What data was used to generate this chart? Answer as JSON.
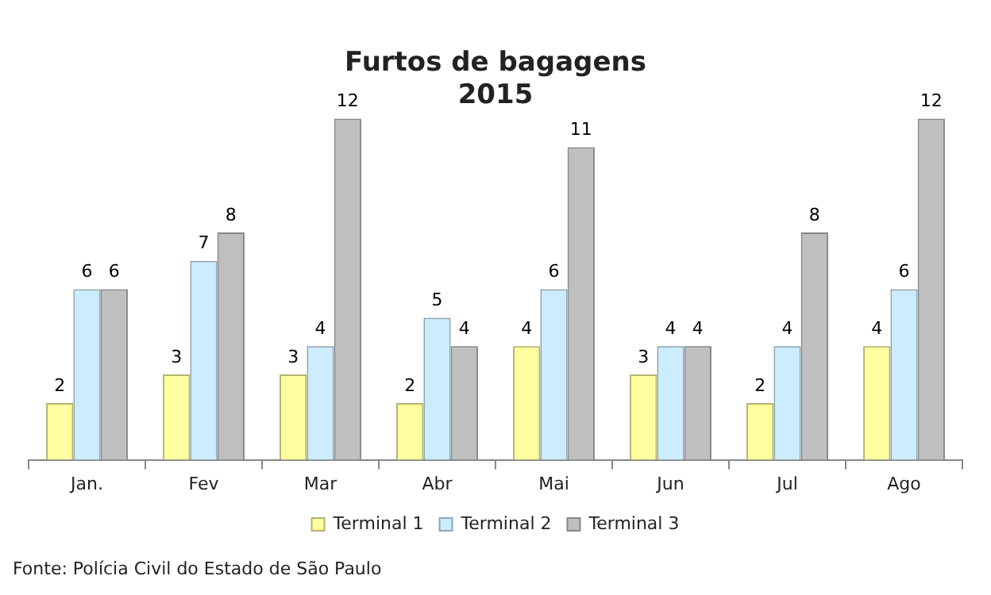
{
  "chart_data": {
    "type": "bar",
    "title": "Furtos de bagagens",
    "subtitle": "2015",
    "categories": [
      "Jan.",
      "Fev",
      "Mar",
      "Abr",
      "Mai",
      "Jun",
      "Jul",
      "Ago"
    ],
    "series": [
      {
        "name": "Terminal 1",
        "color": "#ffff9f",
        "values": [
          2,
          3,
          3,
          2,
          4,
          3,
          2,
          4
        ]
      },
      {
        "name": "Terminal 2",
        "color": "#ccecff",
        "values": [
          6,
          7,
          4,
          5,
          6,
          4,
          4,
          6
        ]
      },
      {
        "name": "Terminal 3",
        "color": "#bfbfbf",
        "values": [
          6,
          8,
          12,
          4,
          11,
          4,
          8,
          12
        ]
      }
    ],
    "data_labels": true,
    "legend": "bottom",
    "grid": false,
    "annotations": [
      "Fonte: Polícia Civil do Estado de São Paulo"
    ]
  }
}
